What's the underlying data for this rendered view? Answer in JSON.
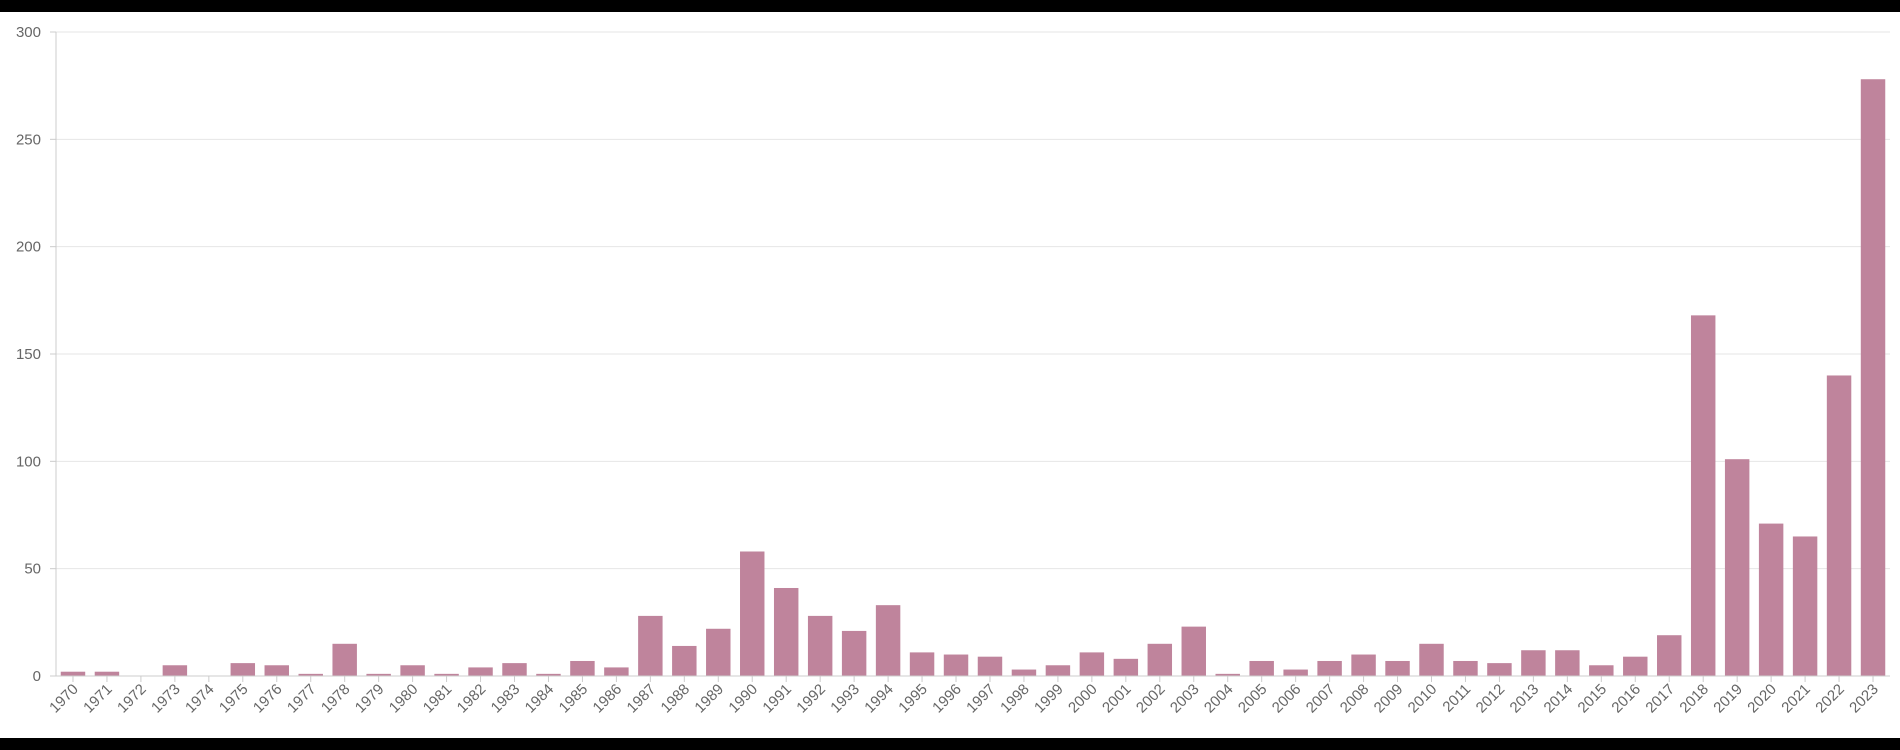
{
  "chart_data": {
    "type": "bar",
    "title": "",
    "xlabel": "",
    "ylabel": "",
    "ylim": [
      0,
      300
    ],
    "yticks": [
      0,
      50,
      100,
      150,
      200,
      250,
      300
    ],
    "grid": true,
    "legend": "none",
    "bar_color": "#bf849c",
    "categories": [
      "1970",
      "1971",
      "1972",
      "1973",
      "1974",
      "1975",
      "1976",
      "1977",
      "1978",
      "1979",
      "1980",
      "1981",
      "1982",
      "1983",
      "1984",
      "1985",
      "1986",
      "1987",
      "1988",
      "1989",
      "1990",
      "1991",
      "1992",
      "1993",
      "1994",
      "1995",
      "1996",
      "1997",
      "1998",
      "1999",
      "2000",
      "2001",
      "2002",
      "2003",
      "2004",
      "2005",
      "2006",
      "2007",
      "2008",
      "2009",
      "2010",
      "2011",
      "2012",
      "2013",
      "2014",
      "2015",
      "2016",
      "2017",
      "2018",
      "2019",
      "2020",
      "2021",
      "2022",
      "2023"
    ],
    "values": [
      2,
      2,
      0,
      5,
      0,
      6,
      5,
      1,
      15,
      1,
      5,
      1,
      4,
      6,
      1,
      7,
      4,
      28,
      14,
      22,
      58,
      41,
      28,
      21,
      33,
      11,
      10,
      9,
      3,
      5,
      11,
      8,
      15,
      23,
      1,
      7,
      3,
      7,
      10,
      7,
      15,
      7,
      6,
      12,
      12,
      5,
      9,
      19,
      168,
      101,
      71,
      65,
      140,
      278
    ]
  }
}
